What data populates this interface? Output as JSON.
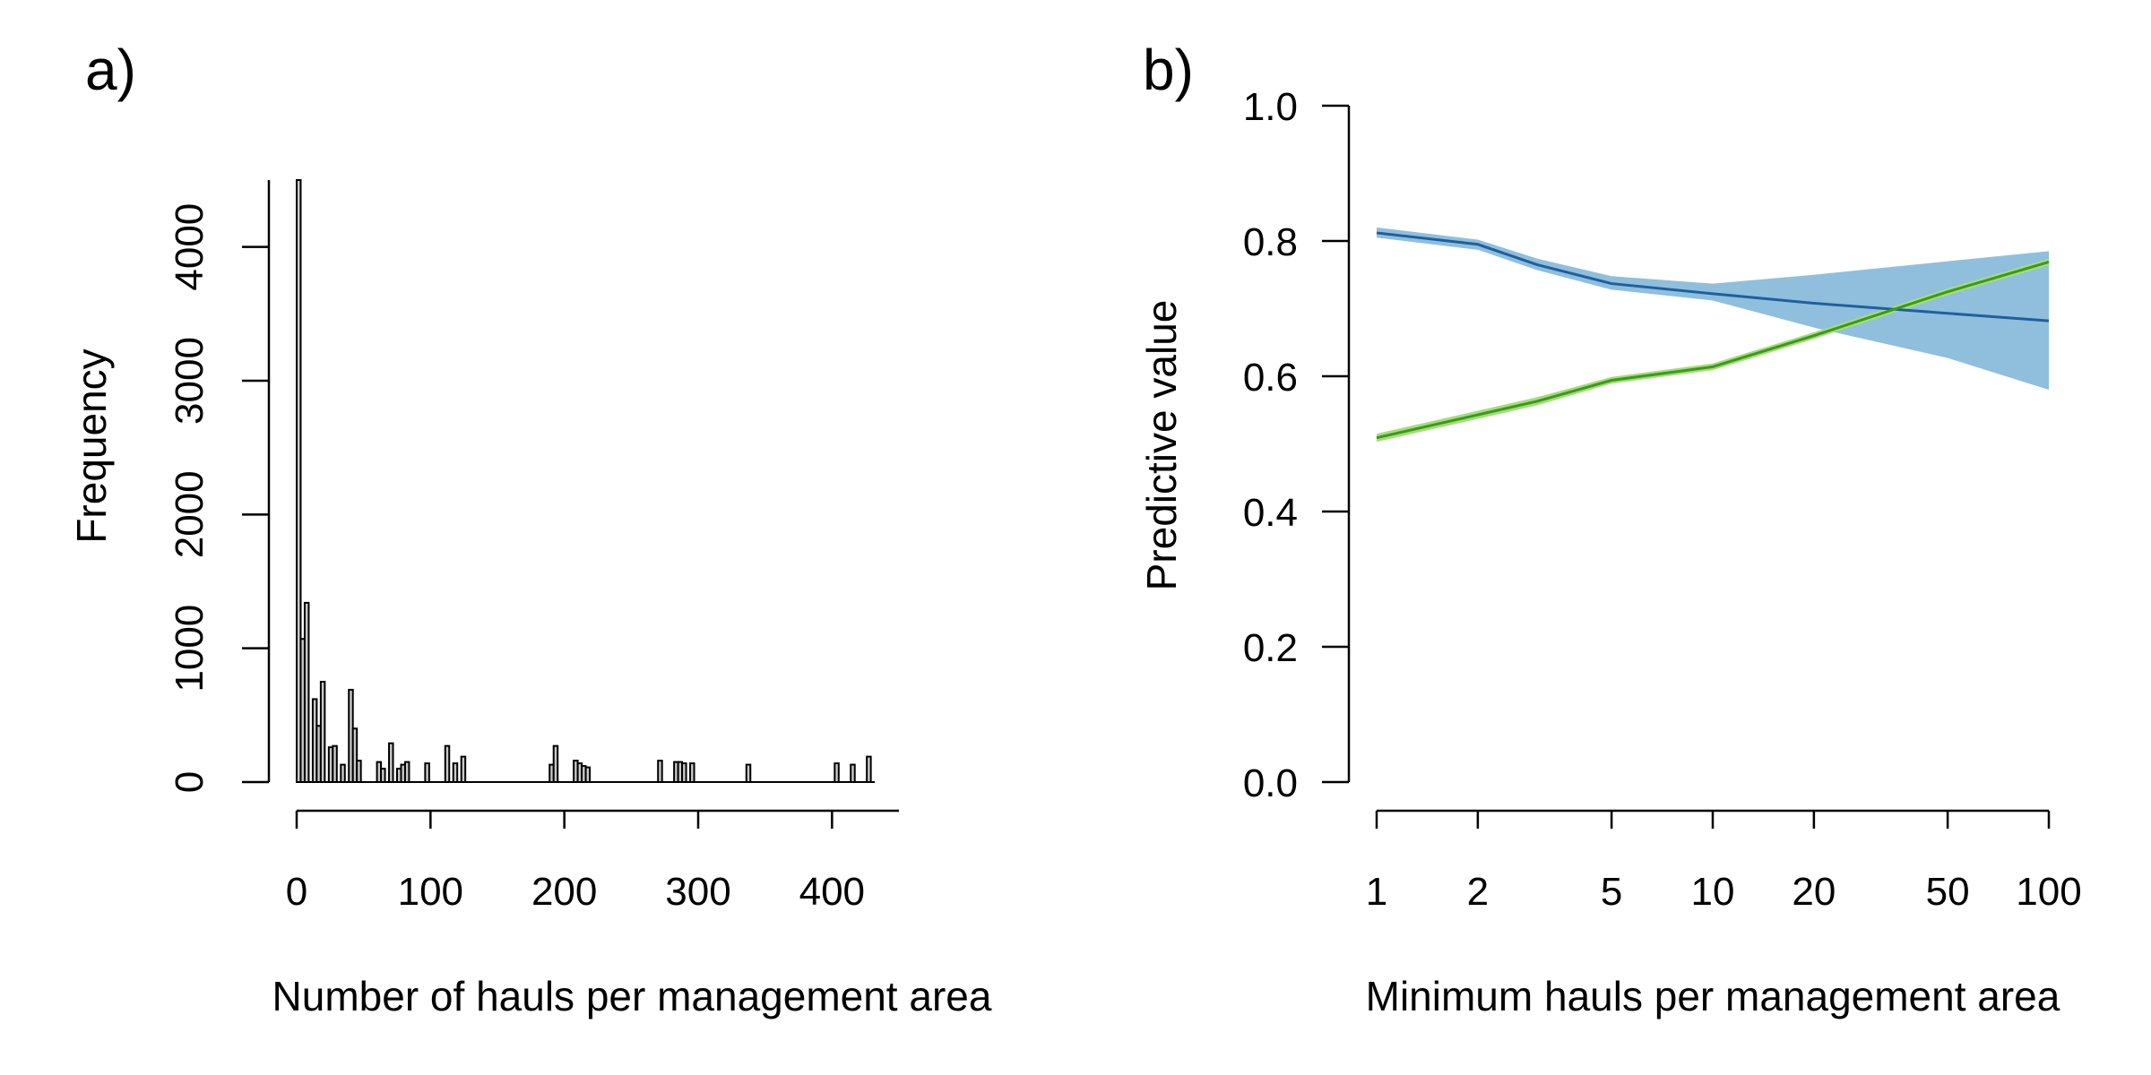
{
  "chart_data": [
    {
      "panel_label": "a)",
      "type": "bar",
      "subtype": "histogram",
      "title": "",
      "xlabel": "Number of hauls per management area",
      "ylabel": "Frequency",
      "xlim": [
        0,
        450
      ],
      "ylim": [
        0,
        4500
      ],
      "xticks": [
        0,
        100,
        200,
        300,
        400
      ],
      "yticks": [
        0,
        1000,
        2000,
        3000,
        4000
      ],
      "xtick_labels": [
        "0",
        "100",
        "200",
        "300",
        "400"
      ],
      "ytick_labels": [
        "0",
        "1000",
        "2000",
        "3000",
        "4000"
      ],
      "bin_width": 3,
      "bar_fill": "#c8c8c8",
      "bins": [
        {
          "x": 0,
          "value": 4500
        },
        {
          "x": 3,
          "value": 1070
        },
        {
          "x": 6,
          "value": 1340
        },
        {
          "x": 12,
          "value": 620
        },
        {
          "x": 15,
          "value": 420
        },
        {
          "x": 18,
          "value": 750
        },
        {
          "x": 24,
          "value": 260
        },
        {
          "x": 27,
          "value": 270
        },
        {
          "x": 33,
          "value": 130
        },
        {
          "x": 39,
          "value": 690
        },
        {
          "x": 42,
          "value": 400
        },
        {
          "x": 45,
          "value": 160
        },
        {
          "x": 60,
          "value": 150
        },
        {
          "x": 63,
          "value": 100
        },
        {
          "x": 69,
          "value": 290
        },
        {
          "x": 75,
          "value": 100
        },
        {
          "x": 78,
          "value": 130
        },
        {
          "x": 81,
          "value": 150
        },
        {
          "x": 96,
          "value": 140
        },
        {
          "x": 111,
          "value": 270
        },
        {
          "x": 117,
          "value": 140
        },
        {
          "x": 123,
          "value": 190
        },
        {
          "x": 189,
          "value": 130
        },
        {
          "x": 192,
          "value": 270
        },
        {
          "x": 207,
          "value": 160
        },
        {
          "x": 210,
          "value": 140
        },
        {
          "x": 213,
          "value": 120
        },
        {
          "x": 216,
          "value": 110
        },
        {
          "x": 270,
          "value": 160
        },
        {
          "x": 282,
          "value": 150
        },
        {
          "x": 285,
          "value": 150
        },
        {
          "x": 288,
          "value": 140
        },
        {
          "x": 294,
          "value": 140
        },
        {
          "x": 336,
          "value": 130
        },
        {
          "x": 402,
          "value": 140
        },
        {
          "x": 414,
          "value": 130
        },
        {
          "x": 426,
          "value": 190
        }
      ]
    },
    {
      "panel_label": "b)",
      "type": "line",
      "title": "",
      "xlabel": "Minimum hauls per management area",
      "ylabel": "Predictive value",
      "xscale": "log",
      "xlim": [
        1,
        100
      ],
      "ylim": [
        0,
        1
      ],
      "xticks": [
        1,
        2,
        5,
        10,
        20,
        50,
        100
      ],
      "yticks": [
        0,
        0.2,
        0.4,
        0.6,
        0.8,
        1.0
      ],
      "xtick_labels": [
        "1",
        "2",
        "5",
        "10",
        "20",
        "50",
        "100"
      ],
      "ytick_labels": [
        "0.0",
        "0.2",
        "0.4",
        "0.6",
        "0.8",
        "1.0"
      ],
      "x": [
        1,
        2,
        3,
        5,
        10,
        20,
        50,
        100
      ],
      "series": [
        {
          "color": "#1f5fa0",
          "band_color": "#8fbfdc",
          "values": [
            0.812,
            0.795,
            0.765,
            0.737,
            0.722,
            0.708,
            0.693,
            0.682
          ],
          "lower": [
            0.805,
            0.787,
            0.757,
            0.728,
            0.712,
            0.672,
            0.627,
            0.58
          ],
          "upper": [
            0.82,
            0.802,
            0.774,
            0.748,
            0.737,
            0.75,
            0.77,
            0.785
          ]
        },
        {
          "color": "#3a9a1a",
          "band_color": "#a6dc7e",
          "values": [
            0.509,
            0.543,
            0.563,
            0.594,
            0.614,
            0.66,
            0.725,
            0.769
          ],
          "lower": [
            0.503,
            0.537,
            0.557,
            0.589,
            0.609,
            0.655,
            0.72,
            0.764
          ],
          "upper": [
            0.515,
            0.549,
            0.569,
            0.599,
            0.619,
            0.665,
            0.73,
            0.774
          ]
        }
      ]
    }
  ]
}
